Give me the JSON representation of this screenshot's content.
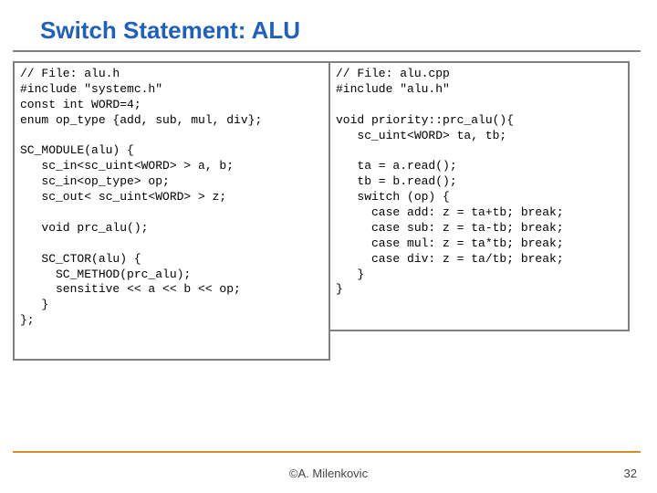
{
  "colors": {
    "title": "#1f5fbf",
    "border": "#808080",
    "footer_line": "#d98b2b",
    "code_text": "#000000"
  },
  "title": "Switch Statement: ALU",
  "code_left": "// File: alu.h\n#include \"systemc.h\"\nconst int WORD=4;\nenum op_type {add, sub, mul, div};\n\nSC_MODULE(alu) {\n   sc_in<sc_uint<WORD> > a, b;\n   sc_in<op_type> op;\n   sc_out< sc_uint<WORD> > z;\n\n   void prc_alu();\n\n   SC_CTOR(alu) {\n     SC_METHOD(prc_alu);\n     sensitive << a << b << op;\n   }\n};",
  "code_right": "// File: alu.cpp\n#include \"alu.h\"\n\nvoid priority::prc_alu(){\n   sc_uint<WORD> ta, tb;\n\n   ta = a.read();\n   tb = b.read();\n   switch (op) {\n     case add: z = ta+tb; break;\n     case sub: z = ta-tb; break;\n     case mul: z = ta*tb; break;\n     case div: z = ta/tb; break;\n   }\n}",
  "footer": "©A. Milenkovic",
  "page": "32"
}
